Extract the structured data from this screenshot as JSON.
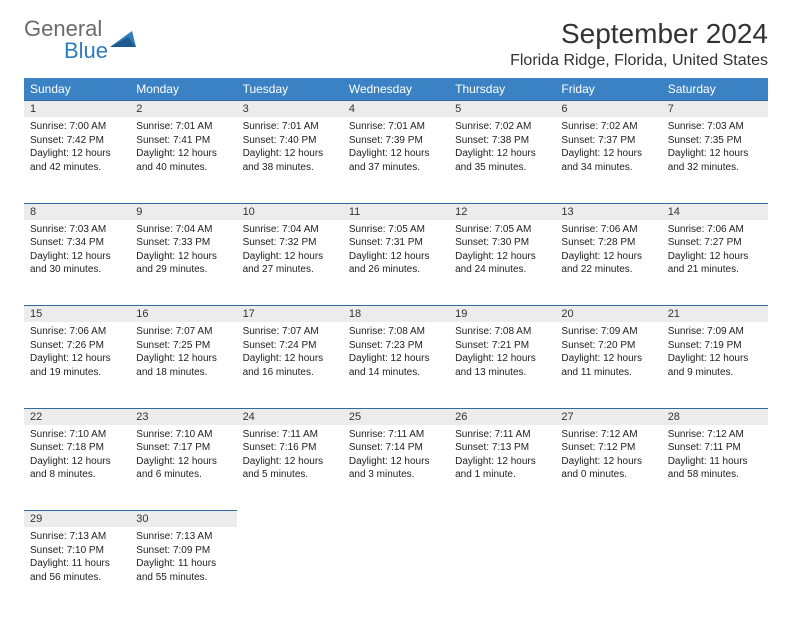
{
  "logo": {
    "part1": "General",
    "part2": "Blue"
  },
  "title": "September 2024",
  "location": "Florida Ridge, Florida, United States",
  "colors": {
    "header_bg": "#3b82c4",
    "header_text": "#ffffff",
    "daynum_bg": "#ececec",
    "daynum_border": "#2f6aa0",
    "page_bg": "#ffffff",
    "text": "#222222"
  },
  "weekdays": [
    "Sunday",
    "Monday",
    "Tuesday",
    "Wednesday",
    "Thursday",
    "Friday",
    "Saturday"
  ],
  "weeks": [
    [
      {
        "n": "1",
        "sr": "7:00 AM",
        "ss": "7:42 PM",
        "dl": "12 hours and 42 minutes."
      },
      {
        "n": "2",
        "sr": "7:01 AM",
        "ss": "7:41 PM",
        "dl": "12 hours and 40 minutes."
      },
      {
        "n": "3",
        "sr": "7:01 AM",
        "ss": "7:40 PM",
        "dl": "12 hours and 38 minutes."
      },
      {
        "n": "4",
        "sr": "7:01 AM",
        "ss": "7:39 PM",
        "dl": "12 hours and 37 minutes."
      },
      {
        "n": "5",
        "sr": "7:02 AM",
        "ss": "7:38 PM",
        "dl": "12 hours and 35 minutes."
      },
      {
        "n": "6",
        "sr": "7:02 AM",
        "ss": "7:37 PM",
        "dl": "12 hours and 34 minutes."
      },
      {
        "n": "7",
        "sr": "7:03 AM",
        "ss": "7:35 PM",
        "dl": "12 hours and 32 minutes."
      }
    ],
    [
      {
        "n": "8",
        "sr": "7:03 AM",
        "ss": "7:34 PM",
        "dl": "12 hours and 30 minutes."
      },
      {
        "n": "9",
        "sr": "7:04 AM",
        "ss": "7:33 PM",
        "dl": "12 hours and 29 minutes."
      },
      {
        "n": "10",
        "sr": "7:04 AM",
        "ss": "7:32 PM",
        "dl": "12 hours and 27 minutes."
      },
      {
        "n": "11",
        "sr": "7:05 AM",
        "ss": "7:31 PM",
        "dl": "12 hours and 26 minutes."
      },
      {
        "n": "12",
        "sr": "7:05 AM",
        "ss": "7:30 PM",
        "dl": "12 hours and 24 minutes."
      },
      {
        "n": "13",
        "sr": "7:06 AM",
        "ss": "7:28 PM",
        "dl": "12 hours and 22 minutes."
      },
      {
        "n": "14",
        "sr": "7:06 AM",
        "ss": "7:27 PM",
        "dl": "12 hours and 21 minutes."
      }
    ],
    [
      {
        "n": "15",
        "sr": "7:06 AM",
        "ss": "7:26 PM",
        "dl": "12 hours and 19 minutes."
      },
      {
        "n": "16",
        "sr": "7:07 AM",
        "ss": "7:25 PM",
        "dl": "12 hours and 18 minutes."
      },
      {
        "n": "17",
        "sr": "7:07 AM",
        "ss": "7:24 PM",
        "dl": "12 hours and 16 minutes."
      },
      {
        "n": "18",
        "sr": "7:08 AM",
        "ss": "7:23 PM",
        "dl": "12 hours and 14 minutes."
      },
      {
        "n": "19",
        "sr": "7:08 AM",
        "ss": "7:21 PM",
        "dl": "12 hours and 13 minutes."
      },
      {
        "n": "20",
        "sr": "7:09 AM",
        "ss": "7:20 PM",
        "dl": "12 hours and 11 minutes."
      },
      {
        "n": "21",
        "sr": "7:09 AM",
        "ss": "7:19 PM",
        "dl": "12 hours and 9 minutes."
      }
    ],
    [
      {
        "n": "22",
        "sr": "7:10 AM",
        "ss": "7:18 PM",
        "dl": "12 hours and 8 minutes."
      },
      {
        "n": "23",
        "sr": "7:10 AM",
        "ss": "7:17 PM",
        "dl": "12 hours and 6 minutes."
      },
      {
        "n": "24",
        "sr": "7:11 AM",
        "ss": "7:16 PM",
        "dl": "12 hours and 5 minutes."
      },
      {
        "n": "25",
        "sr": "7:11 AM",
        "ss": "7:14 PM",
        "dl": "12 hours and 3 minutes."
      },
      {
        "n": "26",
        "sr": "7:11 AM",
        "ss": "7:13 PM",
        "dl": "12 hours and 1 minute."
      },
      {
        "n": "27",
        "sr": "7:12 AM",
        "ss": "7:12 PM",
        "dl": "12 hours and 0 minutes."
      },
      {
        "n": "28",
        "sr": "7:12 AM",
        "ss": "7:11 PM",
        "dl": "11 hours and 58 minutes."
      }
    ],
    [
      {
        "n": "29",
        "sr": "7:13 AM",
        "ss": "7:10 PM",
        "dl": "11 hours and 56 minutes."
      },
      {
        "n": "30",
        "sr": "7:13 AM",
        "ss": "7:09 PM",
        "dl": "11 hours and 55 minutes."
      },
      null,
      null,
      null,
      null,
      null
    ]
  ],
  "labels": {
    "sunrise": "Sunrise: ",
    "sunset": "Sunset: ",
    "daylight": "Daylight: "
  }
}
